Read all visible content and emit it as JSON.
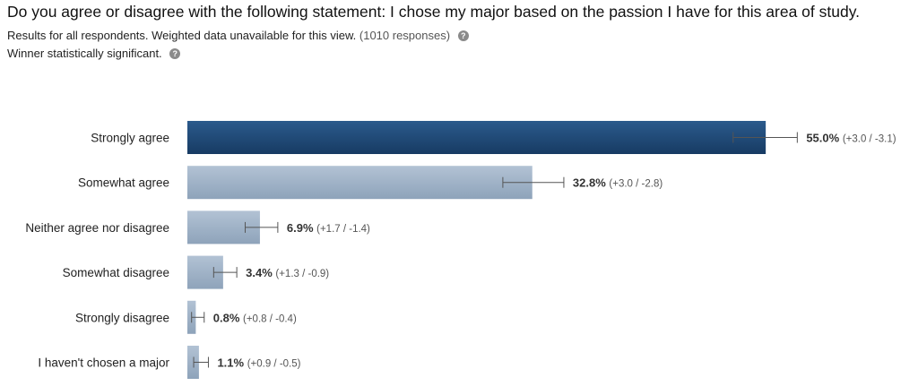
{
  "question": "Do you agree or disagree with the following statement: I chose my major based on the passion I have for this area of study.",
  "subtitle": {
    "text": "Results for all respondents. Weighted data unavailable for this view.",
    "responses": "(1010 responses)",
    "help_icon": "question-circle-icon"
  },
  "significance": {
    "text": "Winner statistically significant.",
    "help_icon": "question-circle-icon"
  },
  "chart_data": {
    "type": "bar",
    "orientation": "horizontal",
    "categories": [
      "Strongly agree",
      "Somewhat agree",
      "Neither agree nor disagree",
      "Somewhat disagree",
      "Strongly disagree",
      "I haven't chosen a major"
    ],
    "values": [
      55.0,
      32.8,
      6.9,
      3.4,
      0.8,
      1.1
    ],
    "value_labels": [
      "55.0%",
      "32.8%",
      "6.9%",
      "3.4%",
      "0.8%",
      "1.1%"
    ],
    "error_plus": [
      3.0,
      3.0,
      1.7,
      1.3,
      0.8,
      0.9
    ],
    "error_minus": [
      3.1,
      2.8,
      1.4,
      0.9,
      0.4,
      0.5
    ],
    "error_labels": [
      "(+3.0 / -3.1)",
      "(+3.0 / -2.8)",
      "(+1.7 / -1.4)",
      "(+1.3 / -0.9)",
      "(+0.8 / -0.4)",
      "(+0.9 / -0.5)"
    ],
    "unit": "%",
    "xlim": [
      0,
      100
    ],
    "grid": false,
    "legend": "none",
    "highlight_index": 0,
    "colors": {
      "winner": "#1f4a78",
      "other": "#a3b5c9",
      "error_bar": "#555555"
    }
  }
}
